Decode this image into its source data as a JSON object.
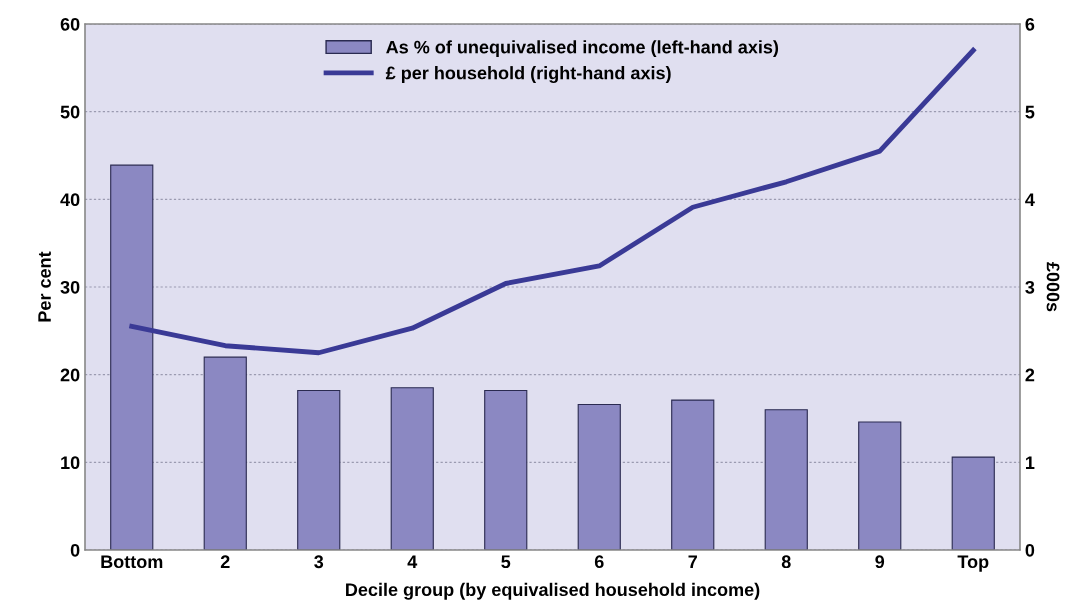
{
  "chart_data": {
    "type": "bar",
    "xlabel": "Decile group (by equivalised household income)",
    "ylabel": "Per cent",
    "y2label": "£000s",
    "categories": [
      "Bottom",
      "2",
      "3",
      "4",
      "5",
      "6",
      "7",
      "8",
      "9",
      "Top"
    ],
    "series": [
      {
        "name": "As % of unequivalised income (left-hand axis)",
        "color": "#8b88c2",
        "values": [
          43.9,
          22.0,
          18.2,
          18.5,
          18.2,
          16.6,
          17.1,
          16.0,
          14.6,
          10.6
        ]
      },
      {
        "name": "£ per household (right-hand axis)",
        "type": "line",
        "axis": "y2",
        "color": "#3a3a96",
        "values": [
          2.55,
          2.33,
          2.25,
          2.53,
          3.04,
          3.24,
          3.91,
          4.2,
          4.55,
          5.7
        ]
      }
    ],
    "ylim": [
      0,
      60
    ],
    "yticks": [
      0,
      10,
      20,
      30,
      40,
      50,
      60
    ],
    "y2lim": [
      0,
      6
    ],
    "y2ticks": [
      0,
      1,
      2,
      3,
      4,
      5,
      6
    ],
    "grid": "y",
    "legend": "top",
    "marker": "none",
    "line_style": "solid"
  }
}
